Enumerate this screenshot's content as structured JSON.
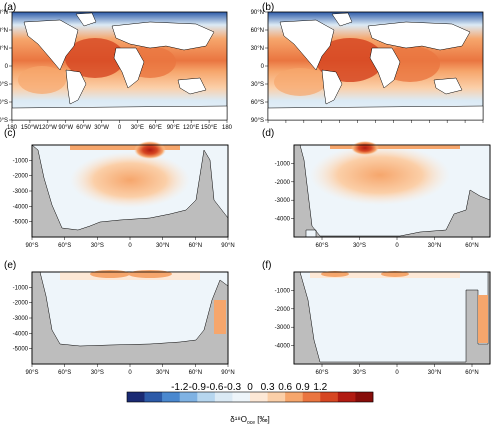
{
  "chart_data": {
    "type": "heatmap",
    "colorbar": {
      "ticks": [
        "-1.2",
        "-0.9",
        "-0.6",
        "-0.3",
        "0",
        "0.3",
        "0.6",
        "0.9",
        "1.2"
      ],
      "title": "δ¹⁸O",
      "title_sub": "oce",
      "units": "[‰]",
      "colors": [
        "#1a2a73",
        "#2c5aa8",
        "#4a88cf",
        "#7fb2e3",
        "#b6d6ef",
        "#dbeaf5",
        "#eef5fa",
        "#fde8d6",
        "#fbcfa8",
        "#f6a66c",
        "#ea7540",
        "#d64622",
        "#b11b12",
        "#870d0a"
      ]
    },
    "panels": [
      {
        "label": "(a)",
        "kind": "map"
      },
      {
        "label": "(b)",
        "kind": "map"
      },
      {
        "label": "(c)",
        "kind": "section",
        "ocean": "atlantic"
      },
      {
        "label": "(d)",
        "kind": "section",
        "ocean": "atlantic"
      },
      {
        "label": "(e)",
        "kind": "section",
        "ocean": "pacific"
      },
      {
        "label": "(f)",
        "kind": "section",
        "ocean": "pacific"
      }
    ],
    "map_x_ticks": [
      "180",
      "150°W",
      "120°W",
      "90°W",
      "60°W",
      "30°W",
      "0",
      "30°E",
      "60°E",
      "90°E",
      "120°E",
      "150°E",
      "180"
    ],
    "map_y_ticks_left": [
      "90°S",
      "60°S",
      "30°S",
      "0",
      "30°N",
      "60°N",
      "90°N"
    ],
    "map_y_ticks_right": [
      "90°S",
      "60°S",
      "30°S",
      "0",
      "30°N",
      "60°N",
      "90°N"
    ],
    "depth_ticks_left": [
      "-1000",
      "-2000",
      "-3000",
      "-4000",
      "-5000"
    ],
    "depth_ticks_right": [
      "-1000",
      "-2000",
      "-3000",
      "-4000"
    ],
    "lat_ticks_wide": [
      "90°S",
      "60°S",
      "30°S",
      "0",
      "30°N",
      "60°N",
      "90°N"
    ],
    "lat_ticks_narrow": [
      "60°S",
      "30°S",
      "0",
      "30°N",
      "60°N"
    ]
  }
}
